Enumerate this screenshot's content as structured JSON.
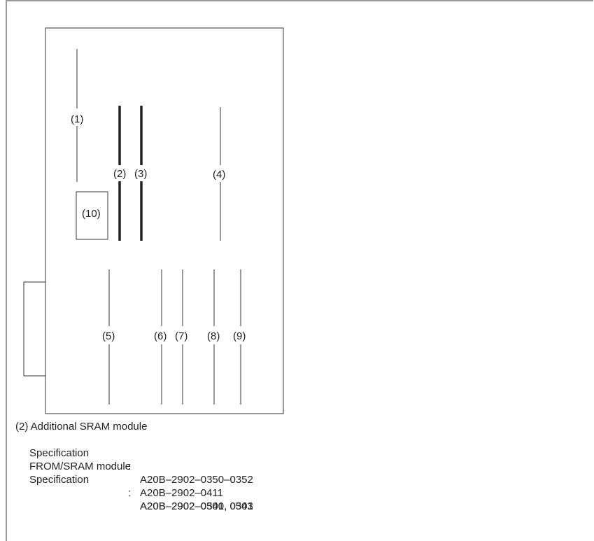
{
  "labels": {
    "l1": "(1)",
    "l2": "(2)",
    "l3": "(3)",
    "l4": "(4)",
    "l5": "(5)",
    "l6": "(6)",
    "l7": "(7)",
    "l8": "(8)",
    "l9": "(9)",
    "l10": "(10)"
  },
  "notes": {
    "heading": "(2) Additional SRAM module",
    "spec1_label": "Specification",
    "spec1_value": "A20B–2902–0350–0352",
    "module2": "FROM/SRAM module",
    "spec2_label": "Specification",
    "spec2_values": [
      "A20B–2902–0341, 0343",
      "A20B–2902–0411",
      "A20B–2902–0500, 0501"
    ],
    "colon": ":"
  }
}
